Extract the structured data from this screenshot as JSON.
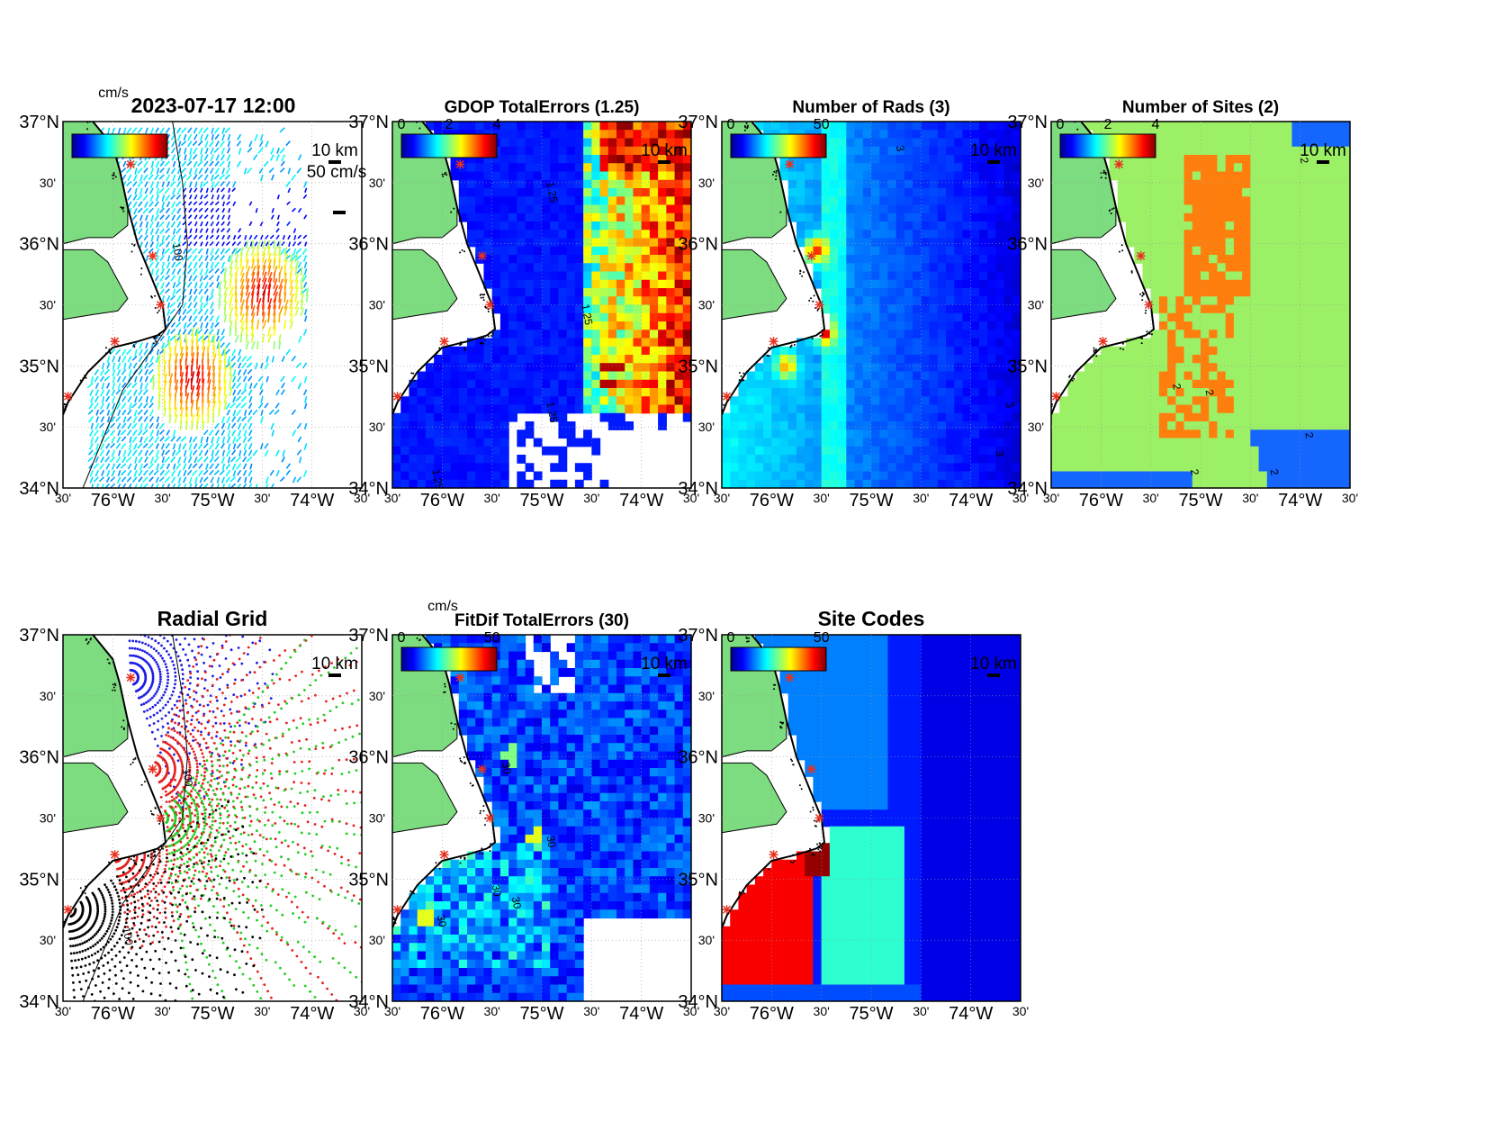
{
  "timestamp": "2023-07-17 12:00",
  "axes": {
    "lat_major": [
      "37°N",
      "36°N",
      "35°N",
      "34°N"
    ],
    "lat_minor": "30'",
    "lon_major": [
      "76°W",
      "75°W",
      "74°W"
    ],
    "lon_minor": "30'"
  },
  "scale_bar": "10 km",
  "colors": {
    "land": "#7ddc7f",
    "coast": "#000000",
    "background": "#ffffff",
    "site_marker": "#e8311f",
    "radial_site_colors": [
      "#1c1ce6",
      "#e6201c",
      "#22cc22",
      "#000000"
    ]
  },
  "panels": [
    {
      "id": "currents",
      "title": "",
      "colorbar_units": "cm/s",
      "colorbar_ticks": [],
      "vector_scale_label": "50 cm/s",
      "contour_labels": [
        "100"
      ],
      "map_type": "vectors"
    },
    {
      "id": "gdop",
      "title": "GDOP TotalErrors (1.25)",
      "colorbar_units": "",
      "colorbar_ticks": [
        "0",
        "2",
        "4"
      ],
      "contour_labels": [
        "1.25",
        "1.25",
        "1.25",
        "1.25"
      ],
      "map_type": "field"
    },
    {
      "id": "nrads",
      "title": "Number of Rads (3)",
      "colorbar_units": "",
      "colorbar_ticks": [
        "0",
        "50"
      ],
      "contour_labels": [
        "3",
        "3",
        "3"
      ],
      "map_type": "field"
    },
    {
      "id": "nsites",
      "title": "Number of Sites (2)",
      "colorbar_units": "",
      "colorbar_ticks": [
        "0",
        "2",
        "4"
      ],
      "contour_labels": [
        "2",
        "2",
        "2",
        "2",
        "2",
        "2"
      ],
      "map_type": "field"
    },
    {
      "id": "radial",
      "title": "Radial Grid",
      "colorbar_units": "",
      "colorbar_ticks": [],
      "contour_labels": [
        "100",
        "100"
      ],
      "map_type": "radial"
    },
    {
      "id": "fitdif",
      "title": "FitDif TotalErrors (30)",
      "colorbar_units": "cm/s",
      "colorbar_ticks": [
        "0",
        "50"
      ],
      "contour_labels": [
        "30",
        "30",
        "30",
        "30",
        "30"
      ],
      "map_type": "field"
    },
    {
      "id": "sitecodes",
      "title": "Site Codes",
      "colorbar_units": "",
      "colorbar_ticks": [
        "0",
        "50"
      ],
      "contour_labels": [],
      "map_type": "field"
    }
  ]
}
